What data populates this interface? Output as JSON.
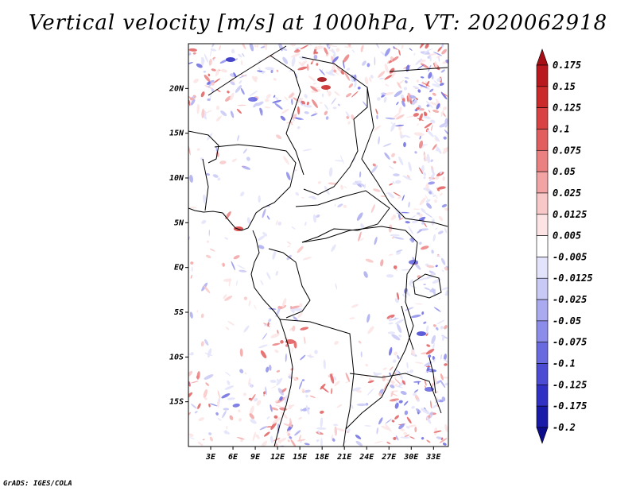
{
  "title": "Vertical velocity [m/s] at 1000hPa, VT: 2020062918",
  "credit": "GrADS: IGES/COLA",
  "map": {
    "lon_range": [
      0,
      35
    ],
    "lat_range": [
      -20,
      25
    ],
    "lat_labels": [
      "20N",
      "15N",
      "10N",
      "5N",
      "EQ",
      "5S",
      "10S",
      "15S"
    ],
    "lat_values": [
      20,
      15,
      10,
      5,
      0,
      -5,
      -10,
      -15
    ],
    "lon_labels": [
      "3E",
      "6E",
      "9E",
      "12E",
      "15E",
      "18E",
      "21E",
      "24E",
      "27E",
      "30E",
      "33E"
    ],
    "lon_values": [
      3,
      6,
      9,
      12,
      15,
      18,
      21,
      24,
      27,
      30,
      33
    ]
  },
  "colorbar": {
    "labels": [
      "0.175",
      "0.15",
      "0.125",
      "0.1",
      "0.075",
      "0.05",
      "0.025",
      "0.0125",
      "0.005",
      "-0.005",
      "-0.0125",
      "-0.025",
      "-0.05",
      "-0.075",
      "-0.1",
      "-0.125",
      "-0.175",
      "-0.2"
    ],
    "colors": [
      "#a50f15",
      "#b8181e",
      "#cb2a2a",
      "#d94242",
      "#e25e5e",
      "#ea8080",
      "#f2a3a3",
      "#f8c7c7",
      "#fce4e4",
      "#ffffff",
      "#e3e3fb",
      "#c9c9f6",
      "#aaaaf0",
      "#8c8cea",
      "#6a6ae0",
      "#4b4bd4",
      "#3030c4",
      "#1a1aa8",
      "#0c0c8c"
    ]
  }
}
